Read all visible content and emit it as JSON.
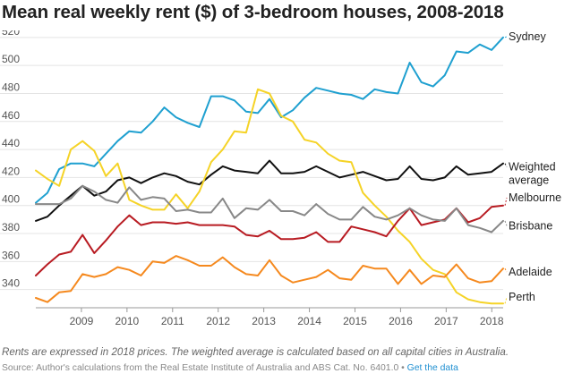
{
  "title": "Mean real weekly rent ($) of 3-bedroom houses, 2008-2018",
  "note": "Rents are expressed in 2018 prices. The weighted average is calculated based on all capital cities in Australia.",
  "source_text": "Source: Author's calculations from the Real Estate Institute of Australia and ABS Cat. No. 6401.0 • ",
  "source_link": "Get the data",
  "chart_data": {
    "type": "line",
    "x_ticks": [
      2009,
      2010,
      2011,
      2012,
      2013,
      2014,
      2015,
      2016,
      2017,
      2018
    ],
    "y_ticks": [
      340,
      360,
      380,
      400,
      420,
      440,
      460,
      480,
      500,
      520
    ],
    "xlim": [
      2008,
      2018.25
    ],
    "ylim": [
      327,
      525
    ],
    "grid": true,
    "series": [
      {
        "name": "Sydney",
        "color": "#1fa0d0",
        "label_lines": [
          "Sydney"
        ],
        "label_y": 518,
        "values": [
          402,
          409,
          426,
          430,
          430,
          428,
          437,
          446,
          453,
          452,
          460,
          470,
          463,
          459,
          456,
          478,
          478,
          475,
          467,
          466,
          476,
          463,
          468,
          477,
          484,
          482,
          480,
          479,
          476,
          483,
          481,
          480,
          502,
          488,
          485,
          493,
          510,
          509,
          515,
          511,
          520
        ]
      },
      {
        "name": "Weighted average",
        "color": "#111111",
        "label_lines": [
          "Weighted",
          "average"
        ],
        "label_y": 425,
        "values": [
          389,
          392,
          400,
          407,
          414,
          407,
          410,
          418,
          420,
          416,
          420,
          423,
          421,
          417,
          415,
          422,
          428,
          425,
          424,
          423,
          432,
          423,
          423,
          424,
          428,
          424,
          420,
          422,
          424,
          421,
          418,
          419,
          428,
          419,
          418,
          420,
          428,
          422,
          423,
          424,
          430
        ]
      },
      {
        "name": "Perth",
        "color": "#f5d327",
        "label_lines": [
          "Perth"
        ],
        "label_y": 332,
        "values": [
          425,
          419,
          414,
          440,
          446,
          439,
          421,
          430,
          404,
          400,
          397,
          397,
          408,
          398,
          410,
          431,
          440,
          453,
          452,
          483,
          480,
          464,
          460,
          447,
          445,
          437,
          432,
          431,
          409,
          400,
          392,
          382,
          374,
          362,
          354,
          351,
          338,
          333,
          331,
          330,
          330
        ]
      },
      {
        "name": "Melbourne",
        "color": "#b81b22",
        "label_lines": [
          "Melbourne"
        ],
        "label_y": 403,
        "values": [
          350,
          358,
          365,
          367,
          379,
          366,
          375,
          385,
          393,
          386,
          388,
          388,
          387,
          388,
          386,
          386,
          386,
          385,
          379,
          378,
          382,
          376,
          376,
          377,
          381,
          374,
          374,
          385,
          383,
          381,
          378,
          389,
          398,
          386,
          388,
          390,
          398,
          388,
          391,
          399,
          400
        ]
      },
      {
        "name": "Brisbane",
        "color": "#888888",
        "label_lines": [
          "Brisbane"
        ],
        "label_y": 383,
        "values": [
          401,
          401,
          401,
          405,
          414,
          410,
          404,
          402,
          413,
          404,
          406,
          405,
          396,
          397,
          395,
          395,
          405,
          391,
          398,
          397,
          404,
          396,
          396,
          393,
          401,
          394,
          390,
          390,
          399,
          392,
          390,
          393,
          398,
          393,
          390,
          389,
          398,
          386,
          384,
          381,
          389
        ]
      },
      {
        "name": "Adelaide",
        "color": "#f5891e",
        "label_lines": [
          "Adelaide"
        ],
        "label_y": 350,
        "values": [
          334,
          331,
          338,
          339,
          351,
          349,
          351,
          356,
          354,
          350,
          360,
          359,
          364,
          361,
          357,
          357,
          363,
          356,
          351,
          350,
          361,
          350,
          345,
          347,
          349,
          354,
          348,
          347,
          357,
          355,
          355,
          344,
          354,
          344,
          350,
          349,
          358,
          348,
          345,
          346,
          355
        ]
      }
    ]
  }
}
